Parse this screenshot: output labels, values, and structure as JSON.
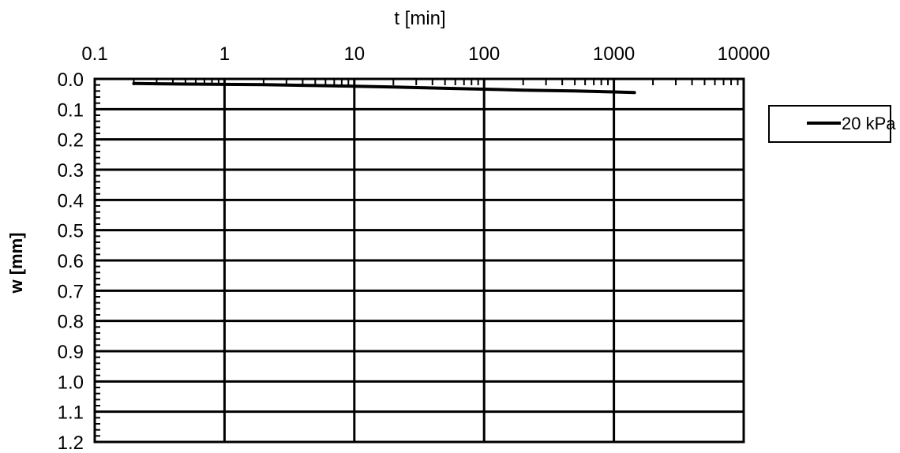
{
  "chart_data": {
    "type": "line",
    "xlabel": "t [min]",
    "ylabel": "w [mm]",
    "x_scale": "log",
    "x_axis_position": "top",
    "y_axis_inverted": true,
    "xlim": [
      0.1,
      10000
    ],
    "ylim": [
      0,
      1.2
    ],
    "xticks": [
      "0.1",
      "1",
      "10",
      "100",
      "1000",
      "10000"
    ],
    "yticks": [
      "0.0",
      "0.1",
      "0.2",
      "0.3",
      "0.4",
      "0.5",
      "0.6",
      "0.7",
      "0.8",
      "0.9",
      "1.0",
      "1.1",
      "1.2"
    ],
    "grid": true,
    "legend_position": "right",
    "colors": {
      "series": "#000000",
      "grid": "#000000",
      "background": "#ffffff"
    },
    "series": [
      {
        "name": "20 kPa",
        "x": [
          0.2,
          0.3,
          0.5,
          1,
          2,
          5,
          10,
          20,
          50,
          100,
          200,
          500,
          1000,
          1440
        ],
        "y": [
          0.015,
          0.016,
          0.017,
          0.018,
          0.019,
          0.022,
          0.024,
          0.027,
          0.031,
          0.034,
          0.037,
          0.04,
          0.043,
          0.045
        ]
      }
    ]
  }
}
